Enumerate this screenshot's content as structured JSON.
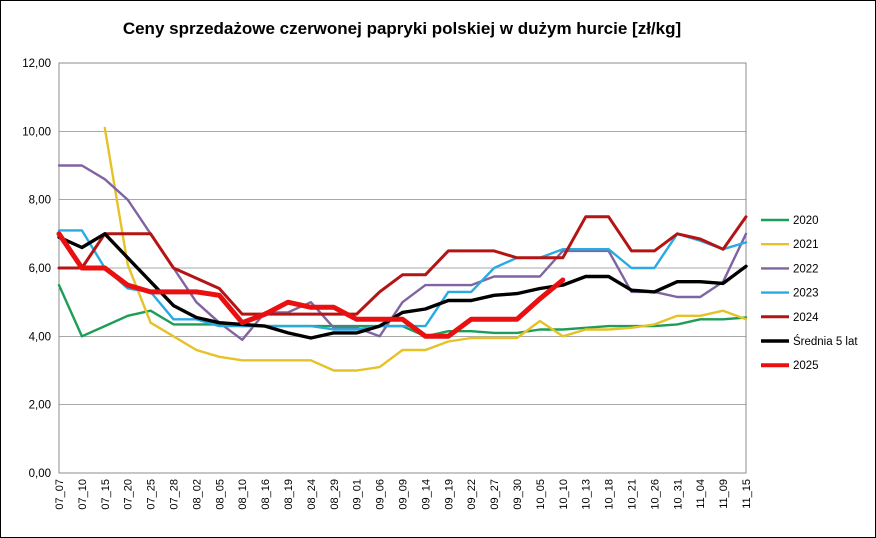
{
  "chart_data": {
    "type": "line",
    "title": "Ceny sprzedażowe czerwonej papryki polskiej w dużym hurcie [zł/kg]",
    "xlabel": "",
    "ylabel": "",
    "ylim": [
      0,
      12
    ],
    "grid": "horizontal",
    "legend_position": "right",
    "y_ticks": {
      "values": [
        0,
        2,
        4,
        6,
        8,
        10,
        12
      ],
      "labels": [
        "0,00",
        "2,00",
        "4,00",
        "6,00",
        "8,00",
        "10,00",
        "12,00"
      ]
    },
    "x_labels": [
      "07_07",
      "07_10",
      "07_15",
      "07_20",
      "07_25",
      "07_28",
      "08_02",
      "08_05",
      "08_10",
      "08_16",
      "08_19",
      "08_24",
      "08_29",
      "09_01",
      "09_06",
      "09_09",
      "09_14",
      "09_19",
      "09_22",
      "09_27",
      "09_30",
      "10_05",
      "10_10",
      "10_13",
      "10_18",
      "10_21",
      "10_26",
      "10_31",
      "11_04",
      "11_09",
      "11_15"
    ],
    "series": [
      {
        "name": "2020",
        "color": "#1f9d58",
        "width": 2.4,
        "values": [
          5.5,
          4.0,
          4.3,
          4.6,
          4.75,
          4.35,
          4.35,
          4.35,
          4.3,
          4.3,
          4.3,
          4.3,
          4.3,
          4.3,
          4.3,
          4.3,
          4.0,
          4.15,
          4.15,
          4.1,
          4.1,
          4.2,
          4.2,
          4.25,
          4.3,
          4.3,
          4.3,
          4.35,
          4.5,
          4.5,
          4.55
        ]
      },
      {
        "name": "2021",
        "color": "#e6c229",
        "width": 2.4,
        "values": [
          null,
          null,
          10.1,
          6.1,
          4.4,
          4.0,
          3.6,
          3.4,
          3.3,
          3.3,
          3.3,
          3.3,
          3.0,
          3.0,
          3.1,
          3.6,
          3.6,
          3.85,
          3.95,
          3.95,
          3.95,
          4.45,
          4.0,
          4.2,
          4.2,
          4.25,
          4.35,
          4.6,
          4.6,
          4.75,
          4.5
        ]
      },
      {
        "name": "2022",
        "color": "#8064a2",
        "width": 2.4,
        "values": [
          9.0,
          9.0,
          8.6,
          8.0,
          7.0,
          6.0,
          5.0,
          4.4,
          3.9,
          4.7,
          4.7,
          5.0,
          4.25,
          4.25,
          4.0,
          5.0,
          5.5,
          5.5,
          5.5,
          5.75,
          5.75,
          5.75,
          6.5,
          6.5,
          6.5,
          5.3,
          5.3,
          5.15,
          5.15,
          5.6,
          7.0
        ]
      },
      {
        "name": "2023",
        "color": "#29abe2",
        "width": 2.4,
        "values": [
          7.1,
          7.1,
          6.0,
          5.4,
          5.3,
          4.5,
          4.5,
          4.3,
          4.3,
          4.3,
          4.3,
          4.3,
          4.2,
          4.2,
          4.3,
          4.3,
          4.3,
          5.3,
          5.3,
          6.0,
          6.3,
          6.3,
          6.55,
          6.55,
          6.55,
          6.0,
          6.0,
          7.0,
          6.8,
          6.55,
          6.75
        ]
      },
      {
        "name": "2024",
        "color": "#b41414",
        "width": 3,
        "values": [
          6.0,
          6.0,
          7.0,
          7.0,
          7.0,
          6.0,
          5.7,
          5.4,
          4.65,
          4.65,
          4.65,
          4.65,
          4.65,
          4.65,
          5.3,
          5.8,
          5.8,
          6.5,
          6.5,
          6.5,
          6.3,
          6.3,
          6.3,
          7.5,
          7.5,
          6.5,
          6.5,
          7.0,
          6.85,
          6.55,
          7.5
        ]
      },
      {
        "name": "Średnia 5 lat",
        "color": "#000000",
        "width": 3.4,
        "values": [
          6.9,
          6.6,
          7.0,
          6.3,
          5.6,
          4.9,
          4.55,
          4.4,
          4.35,
          4.3,
          4.1,
          3.95,
          4.1,
          4.1,
          4.3,
          4.7,
          4.8,
          5.05,
          5.05,
          5.2,
          5.25,
          5.4,
          5.5,
          5.75,
          5.75,
          5.35,
          5.3,
          5.6,
          5.6,
          5.55,
          6.05
        ]
      },
      {
        "name": "2025",
        "color": "#e81010",
        "width": 5,
        "values": [
          7.0,
          6.0,
          6.0,
          5.5,
          5.3,
          5.3,
          5.3,
          5.2,
          4.4,
          4.65,
          5.0,
          4.85,
          4.85,
          4.5,
          4.5,
          4.5,
          4.0,
          4.0,
          4.5,
          4.5,
          4.5,
          5.1,
          5.65,
          null,
          null,
          null,
          null,
          null,
          null,
          null,
          null
        ]
      }
    ]
  }
}
